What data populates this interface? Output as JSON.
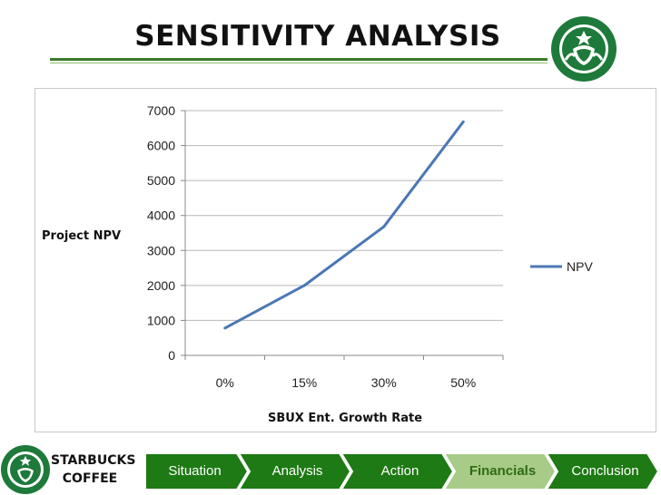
{
  "slide": {
    "title": "SENSITIVITY ANALYSIS"
  },
  "brand": {
    "line1": "STARBUCKS",
    "line2": "COFFEE"
  },
  "nav": {
    "items": [
      {
        "label": "Situation",
        "active": false
      },
      {
        "label": "Analysis",
        "active": false
      },
      {
        "label": "Action",
        "active": false
      },
      {
        "label": "Financials",
        "active": true
      },
      {
        "label": "Conclusion",
        "active": false
      }
    ],
    "colors": {
      "tab": "#1e7a14",
      "active_tab": "#a8cc88"
    }
  },
  "chart_data": {
    "type": "line",
    "categories": [
      "0%",
      "15%",
      "30%",
      "50%"
    ],
    "series": [
      {
        "name": "NPV",
        "values": [
          780,
          2000,
          3680,
          6680
        ],
        "color": "#4a78b4"
      }
    ],
    "xlabel": "SBUX Ent. Growth Rate",
    "ylabel": "Project NPV",
    "ylim": [
      0,
      7000
    ],
    "yticks": [
      0,
      1000,
      2000,
      3000,
      4000,
      5000,
      6000,
      7000
    ],
    "grid": true,
    "legend": "right"
  }
}
